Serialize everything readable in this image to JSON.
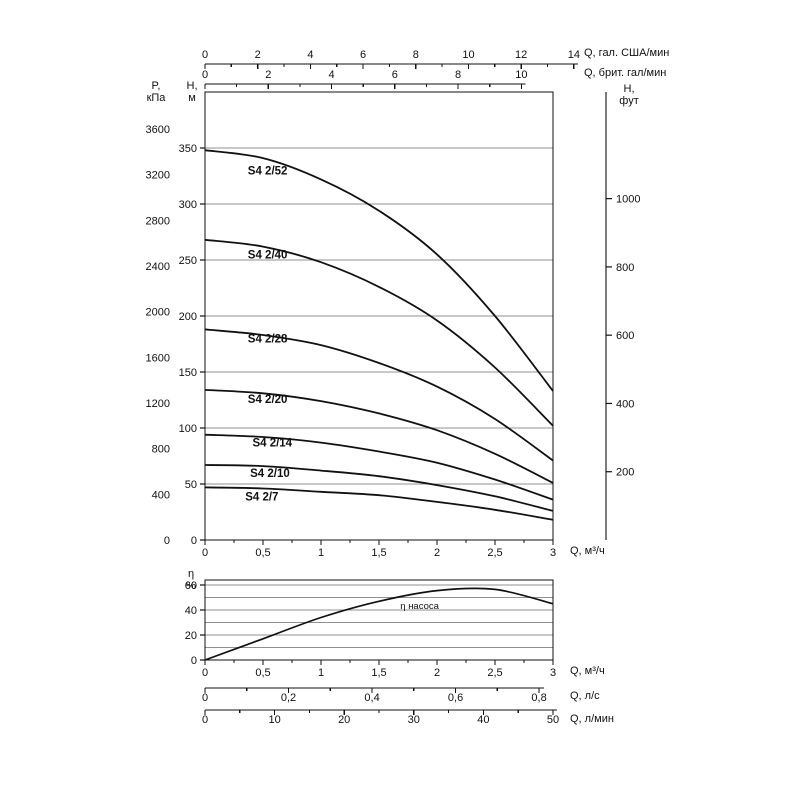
{
  "labels": {
    "pressure_unit": [
      "P,",
      "кПа"
    ],
    "head_m_unit": [
      "H,",
      "м"
    ],
    "head_ft_unit": [
      "H,",
      "фут"
    ],
    "efficiency_unit": [
      "η",
      "%"
    ],
    "q_us_gpm": "Q, гал. США/мин",
    "q_imp_gpm": "Q, брит. гал/мин",
    "q_m3h_main": "Q, м³/ч",
    "q_m3h_eff": "Q, м³/ч",
    "q_ls": "Q, л/с",
    "q_lmin": "Q, л/мин"
  },
  "colors": {
    "curve": "#111111",
    "grid": "#909090",
    "axis": "#111111",
    "text": "#111111",
    "background": "#ffffff"
  },
  "chart_data": [
    {
      "id": "head-capacity",
      "type": "line",
      "xlabel": "Q, м³/ч",
      "ylabel": "H, м",
      "xlim": [
        0,
        3
      ],
      "ylim": [
        0,
        400
      ],
      "grid": "horizontal",
      "legend": "inline-curve-labels",
      "x": [
        0,
        0.5,
        1,
        1.5,
        2,
        2.5,
        3
      ],
      "series": [
        {
          "name": "S4 2/52",
          "values": [
            348,
            341,
            322,
            294,
            255,
            200,
            133
          ],
          "label_q": 0.54,
          "label_h": 330
        },
        {
          "name": "S4 2/40",
          "values": [
            268,
            262,
            248,
            226,
            196,
            154,
            102
          ],
          "label_q": 0.54,
          "label_h": 255
        },
        {
          "name": "S4 2/28",
          "values": [
            188,
            183,
            174,
            158,
            137,
            108,
            71
          ],
          "label_q": 0.54,
          "label_h": 180
        },
        {
          "name": "S4 2/20",
          "values": [
            134,
            131,
            124,
            113,
            98,
            77,
            51
          ],
          "label_q": 0.54,
          "label_h": 126
        },
        {
          "name": "S4 2/14",
          "values": [
            94,
            92,
            87,
            79,
            69,
            54,
            36
          ],
          "label_q": 0.58,
          "label_h": 87
        },
        {
          "name": "S4 2/10",
          "values": [
            67,
            66,
            62,
            57,
            49,
            39,
            26
          ],
          "label_q": 0.56,
          "label_h": 60
        },
        {
          "name": "S4 2/7",
          "values": [
            47,
            46,
            43,
            40,
            34,
            27,
            18
          ],
          "label_q": 0.49,
          "label_h": 39
        }
      ],
      "y_ticks_m": [
        0,
        50,
        100,
        150,
        200,
        250,
        300,
        350
      ],
      "y_ticks_kpa": [
        0,
        400,
        800,
        1200,
        1600,
        2000,
        2400,
        2800,
        3200,
        3600
      ],
      "y_ticks_ft": [
        200,
        400,
        600,
        800,
        1000
      ],
      "x_ticks_m3h": {
        "values": [
          0,
          0.5,
          1,
          1.5,
          2,
          2.5,
          3
        ],
        "labels": [
          "0",
          "0,5",
          "1",
          "1,5",
          "2",
          "2,5",
          "3"
        ]
      },
      "x_ticks_us_gpm": [
        0,
        2,
        4,
        6,
        8,
        10,
        12,
        14
      ],
      "x_ticks_imp_gpm": [
        0,
        2,
        4,
        6,
        8,
        10
      ]
    },
    {
      "id": "efficiency",
      "type": "line",
      "xlabel": "Q, м³/ч",
      "ylabel": "η, %",
      "xlim": [
        0,
        3
      ],
      "ylim": [
        0,
        64
      ],
      "grid": "horizontal",
      "grid_step": 10,
      "x": [
        0,
        0.5,
        1,
        1.5,
        2,
        2.5,
        3
      ],
      "series": [
        {
          "name": "η насоса",
          "values": [
            0,
            17,
            34,
            47,
            55.5,
            56.5,
            45
          ],
          "label_q": 1.85,
          "label_eta": 41
        }
      ],
      "y_ticks": [
        0,
        20,
        40,
        60
      ],
      "x_ticks_m3h": {
        "values": [
          0,
          0.5,
          1,
          1.5,
          2,
          2.5,
          3
        ],
        "labels": [
          "0",
          "0,5",
          "1",
          "1,5",
          "2",
          "2,5",
          "3"
        ]
      },
      "x_ticks_ls": {
        "values": [
          0,
          0.2,
          0.4,
          0.6,
          0.8
        ],
        "labels": [
          "0",
          "0,2",
          "0,4",
          "0,6",
          "0,8"
        ]
      },
      "x_ticks_lmin": {
        "values": [
          0,
          10,
          20,
          30,
          40,
          50
        ],
        "labels": [
          "0",
          "10",
          "20",
          "30",
          "40",
          "50"
        ]
      }
    }
  ]
}
